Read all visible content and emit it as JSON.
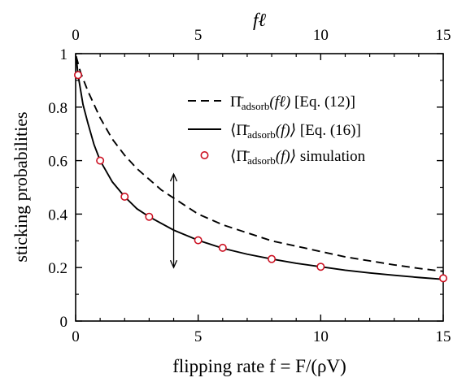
{
  "chart_data": {
    "type": "line",
    "xlabel": "flipping rate f = F/(ρV)",
    "x2label": "fℓ",
    "ylabel": "sticking probabilities",
    "xlim": [
      0,
      15
    ],
    "ylim": [
      0,
      1
    ],
    "x_ticks": [
      "0",
      "5",
      "10",
      "15"
    ],
    "x2_ticks": [
      "0",
      "5",
      "10",
      "15"
    ],
    "y_ticks": [
      "0",
      "0.2",
      "0.4",
      "0.6",
      "0.8",
      "1"
    ],
    "grid": false,
    "legend_position": "top-right",
    "series": [
      {
        "name": "Π̄adsorb(fℓ) [Eq. (12)]",
        "legend_main": "Π̄",
        "legend_sub": "adsorb",
        "legend_arg": "(fℓ)",
        "legend_ref": "[Eq. (12)]",
        "style": "dashed",
        "color": "#000000",
        "x": [
          0.02,
          0.2,
          0.5,
          1,
          1.5,
          2,
          2.5,
          3,
          3.5,
          4,
          5,
          6,
          7,
          8,
          9,
          10,
          11,
          12,
          13,
          14,
          15
        ],
        "y": [
          0.99,
          0.93,
          0.86,
          0.76,
          0.68,
          0.62,
          0.57,
          0.53,
          0.49,
          0.46,
          0.4,
          0.36,
          0.33,
          0.3,
          0.28,
          0.26,
          0.24,
          0.225,
          0.21,
          0.197,
          0.186
        ]
      },
      {
        "name": "⟨Π̄adsorb(f)⟩ [Eq. (16)]",
        "legend_main": "⟨Π̄",
        "legend_sub": "adsorb",
        "legend_arg": "(f)⟩",
        "legend_ref": "[Eq. (16)]",
        "style": "solid",
        "color": "#000000",
        "x": [
          0.02,
          0.1,
          0.3,
          0.5,
          0.75,
          1,
          1.5,
          2,
          2.5,
          3,
          4,
          5,
          6,
          7,
          8,
          9,
          10,
          11,
          12,
          13,
          14,
          15
        ],
        "y": [
          0.99,
          0.92,
          0.81,
          0.74,
          0.66,
          0.6,
          0.52,
          0.465,
          0.42,
          0.39,
          0.34,
          0.302,
          0.272,
          0.25,
          0.232,
          0.216,
          0.203,
          0.19,
          0.18,
          0.171,
          0.163,
          0.156
        ]
      },
      {
        "name": "⟨Π̄adsorb(f)⟩ simulation",
        "legend_main": "⟨Π̄",
        "legend_sub": "adsorb",
        "legend_arg": "(f)⟩",
        "legend_ref": "simulation",
        "style": "markers",
        "color": "#cc1122",
        "x": [
          0.1,
          1,
          2,
          3,
          5,
          6,
          8,
          10,
          15
        ],
        "y": [
          0.92,
          0.6,
          0.465,
          0.39,
          0.302,
          0.274,
          0.232,
          0.203,
          0.16
        ]
      }
    ],
    "annotations": [
      {
        "type": "double-arrow",
        "x": 4,
        "y_from": 0.2,
        "y_to": 0.55
      }
    ]
  }
}
